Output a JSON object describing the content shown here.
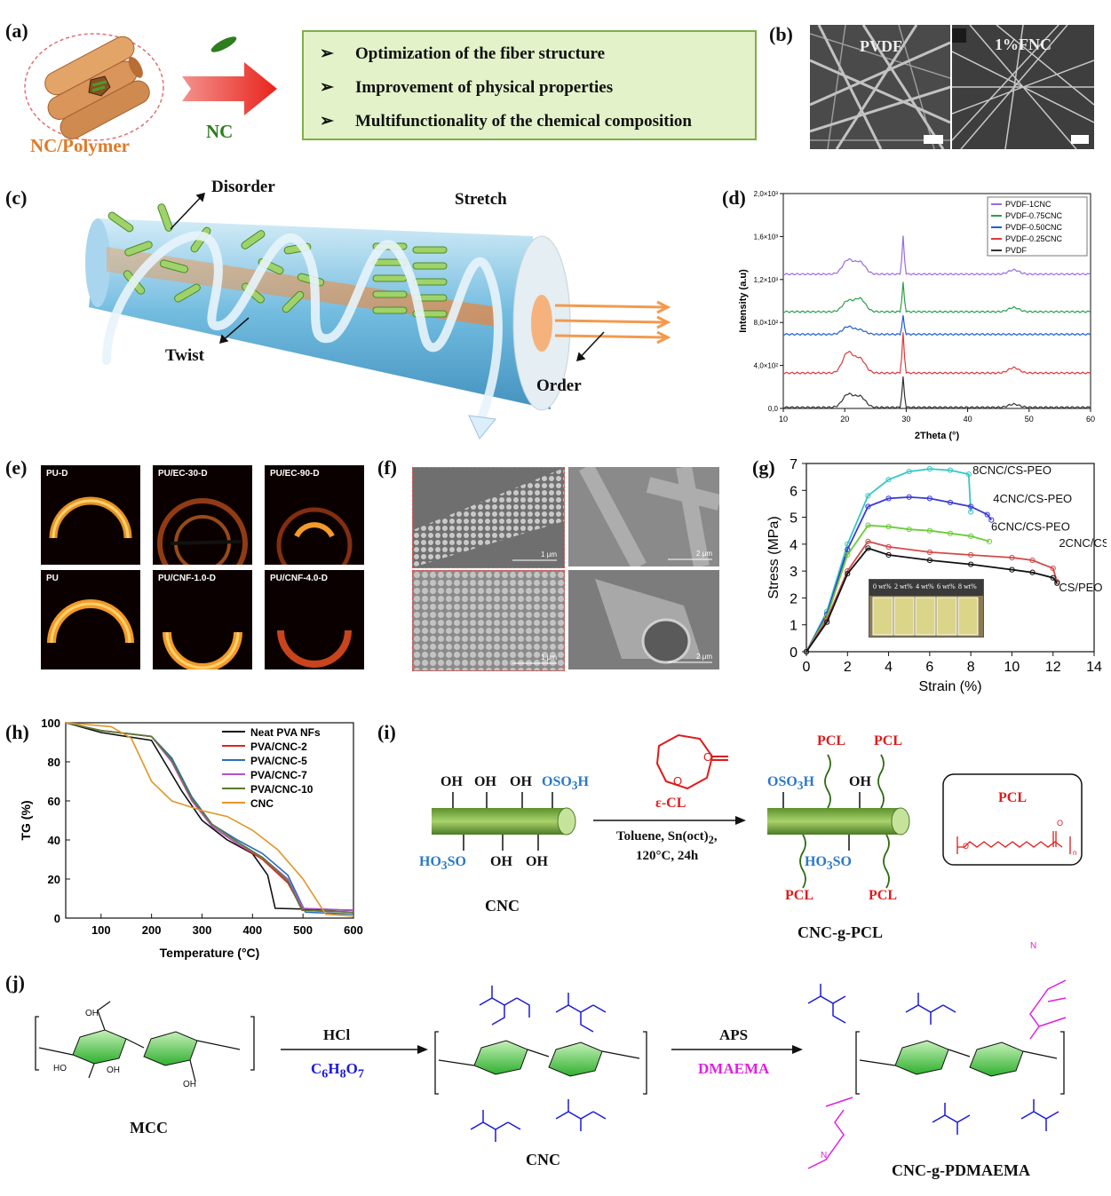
{
  "panels": [
    "(a)",
    "(b)",
    "(c)",
    "(d)",
    "(e)",
    "(f)",
    "(g)",
    "(h)",
    "(i)",
    "(j)"
  ],
  "panel_a": {
    "composite_label": "NC/Polymer",
    "nc_label": "NC",
    "benefits": [
      "Optimization of the fiber structure",
      "Improvement of physical properties",
      "Multifunctionality of the chemical composition"
    ],
    "colors": {
      "box_fill": "#e3f2c9",
      "box_border": "#7fae4a",
      "fiber": "#d9955a",
      "arrow": "#e8241c",
      "nc_text": "#2e7d1f",
      "composite_text": "#e07a28"
    }
  },
  "panel_b": {
    "left_label": "PVDF",
    "right_label": "1%FNC"
  },
  "panel_c": {
    "labels": {
      "disorder": "Disorder",
      "stretch": "Stretch",
      "twist": "Twist",
      "order": "Order"
    }
  },
  "panel_e": {
    "tiles": [
      "PU-D",
      "PU/EC-30-D",
      "PU/EC-90-D",
      "PU",
      "PU/CNF-1.0-D",
      "PU/CNF-4.0-D"
    ]
  },
  "panel_f": {
    "scale_bars": [
      "1 μm",
      "2 μm",
      "1 μm",
      "2 μm"
    ]
  },
  "panel_g": {
    "inset_labels": [
      "0 wt%",
      "2 wt%",
      "4 wt%",
      "6 wt%",
      "8 wt%"
    ]
  },
  "panel_i": {
    "reagent": "ε-CL",
    "conditions_line1": "Toluene, Sn(oct)",
    "conditions_sub": "2",
    "conditions_line1_end": ",",
    "conditions_line2": "120°C, 24h",
    "left_name": "CNC",
    "right_name": "CNC-g-PCL",
    "pcl_box_title": "PCL",
    "pcl_label": "PCL",
    "oh": "OH",
    "oso3h_top": "OSO",
    "oso3h_sub": "3",
    "oso3h_end": "H",
    "ho3so_a": "HO",
    "ho3so_sub": "3",
    "ho3so_b": "SO",
    "ring_o": "O",
    "carbonyl_o": "O",
    "chain_o": "O",
    "chain_n": "n"
  },
  "panel_j": {
    "step1_top": "HCl",
    "step1_bottom_a": "C",
    "step1_bottom_6": "6",
    "step1_bottom_h": "H",
    "step1_bottom_8": "8",
    "step1_bottom_o": "O",
    "step1_bottom_7": "7",
    "step2_top": "APS",
    "step2_bottom": "DMAEMA",
    "names": [
      "MCC",
      "CNC",
      "CNC-g-PDMAEMA"
    ],
    "oh": "OH",
    "ho": "HO",
    "o": "O",
    "n": "n",
    "n_amine": "N",
    "carbonyl": "O=",
    "ester": "O",
    "colors": {
      "citrate": "#1a1adb",
      "dmaema": "#e020e0",
      "ring": "#35c235"
    }
  },
  "chart_data": [
    {
      "panel": "(d)",
      "type": "line",
      "xlabel": "2Theta (°)",
      "ylabel": "Intensity (a.u)",
      "xlim": [
        10,
        60
      ],
      "xticks": [
        10,
        20,
        30,
        40,
        50,
        60
      ],
      "ylim": [
        0,
        2000
      ],
      "yticks": [
        "0,0",
        "4,0×10²",
        "8,0×10²",
        "1,2×10³",
        "1,6×10³",
        "2,0×10³"
      ],
      "ytick_values": [
        0,
        400,
        800,
        1200,
        1600,
        2000
      ],
      "legend_position": "top-right",
      "grid": false,
      "series": [
        {
          "name": "PVDF-1CNC",
          "color": "#9a6be0",
          "baseline": 1250,
          "peaks": [
            [
              20.5,
              1380
            ],
            [
              22.5,
              1360
            ],
            [
              29.5,
              1600
            ],
            [
              47.5,
              1290
            ]
          ]
        },
        {
          "name": "PVDF-0.75CNC",
          "color": "#2aa14a",
          "baseline": 900,
          "peaks": [
            [
              20.5,
              1000
            ],
            [
              22.5,
              1020
            ],
            [
              29.5,
              1170
            ],
            [
              47.5,
              940
            ]
          ]
        },
        {
          "name": "PVDF-0.50CNC",
          "color": "#1f5fd6",
          "baseline": 690,
          "peaks": [
            [
              20.5,
              760
            ],
            [
              22.5,
              730
            ],
            [
              29.5,
              860
            ]
          ]
        },
        {
          "name": "PVDF-0.25CNC",
          "color": "#e03a3a",
          "baseline": 330,
          "peaks": [
            [
              20.5,
              520
            ],
            [
              22.5,
              460
            ],
            [
              29.5,
              700
            ],
            [
              47.5,
              380
            ]
          ]
        },
        {
          "name": "PVDF",
          "color": "#333333",
          "baseline": 10,
          "peaks": [
            [
              20.5,
              130
            ],
            [
              22.5,
              110
            ],
            [
              29.5,
              290
            ],
            [
              47.5,
              40
            ]
          ]
        }
      ]
    },
    {
      "panel": "(g)",
      "type": "line",
      "xlabel": "Strain (%)",
      "ylabel": "Stress (MPa)",
      "xlim": [
        0,
        14
      ],
      "xticks": [
        0,
        2,
        4,
        6,
        8,
        10,
        12,
        14
      ],
      "ylim": [
        0,
        7
      ],
      "yticks": [
        0,
        1,
        2,
        3,
        4,
        5,
        6,
        7
      ],
      "grid": false,
      "series": [
        {
          "name": "8CNC/CS-PEO",
          "color": "#35c7c7",
          "points": [
            [
              0,
              0
            ],
            [
              1,
              1.5
            ],
            [
              2,
              4.0
            ],
            [
              3,
              5.8
            ],
            [
              4,
              6.4
            ],
            [
              5,
              6.7
            ],
            [
              6,
              6.8
            ],
            [
              7,
              6.75
            ],
            [
              7.9,
              6.6
            ],
            [
              8,
              5.2
            ]
          ]
        },
        {
          "name": "4CNC/CS-PEO",
          "color": "#3a3ad6",
          "points": [
            [
              0,
              0
            ],
            [
              1,
              1.4
            ],
            [
              2,
              3.8
            ],
            [
              3,
              5.4
            ],
            [
              4,
              5.7
            ],
            [
              5,
              5.75
            ],
            [
              6,
              5.7
            ],
            [
              7,
              5.55
            ],
            [
              8,
              5.4
            ],
            [
              8.8,
              5.1
            ],
            [
              9,
              4.9
            ]
          ]
        },
        {
          "name": "6CNC/CS-PEO",
          "color": "#6dcc3a",
          "points": [
            [
              0,
              0
            ],
            [
              1,
              1.3
            ],
            [
              2,
              3.6
            ],
            [
              3,
              4.7
            ],
            [
              4,
              4.65
            ],
            [
              5,
              4.55
            ],
            [
              6,
              4.5
            ],
            [
              7,
              4.4
            ],
            [
              8,
              4.3
            ],
            [
              8.9,
              4.1
            ]
          ]
        },
        {
          "name": "2CNC/CS-PEO",
          "color": "#d24a4a",
          "points": [
            [
              0,
              0
            ],
            [
              1,
              1.2
            ],
            [
              2,
              3.0
            ],
            [
              3,
              4.1
            ],
            [
              4,
              3.9
            ],
            [
              6,
              3.7
            ],
            [
              8,
              3.6
            ],
            [
              10,
              3.5
            ],
            [
              11,
              3.4
            ],
            [
              12,
              3.1
            ],
            [
              12.2,
              2.6
            ]
          ]
        },
        {
          "name": "CS/PEO",
          "color": "#111111",
          "points": [
            [
              0,
              0
            ],
            [
              1,
              1.1
            ],
            [
              2,
              2.9
            ],
            [
              3,
              3.85
            ],
            [
              4,
              3.6
            ],
            [
              6,
              3.4
            ],
            [
              8,
              3.25
            ],
            [
              10,
              3.05
            ],
            [
              11,
              2.95
            ],
            [
              12,
              2.75
            ],
            [
              12.2,
              2.55
            ]
          ]
        }
      ]
    },
    {
      "panel": "(h)",
      "type": "line",
      "xlabel": "Temperature (°C)",
      "ylabel": "TG (%)",
      "xlim": [
        30,
        600
      ],
      "xticks": [
        100,
        200,
        300,
        400,
        500,
        600
      ],
      "ylim": [
        0,
        100
      ],
      "yticks": [
        0,
        20,
        40,
        60,
        80,
        100
      ],
      "legend_position": "top-right",
      "grid": false,
      "series": [
        {
          "name": "Neat PVA NFs",
          "color": "#111111",
          "points": [
            [
              30,
              100
            ],
            [
              100,
              95
            ],
            [
              200,
              91
            ],
            [
              230,
              78
            ],
            [
              260,
              65
            ],
            [
              300,
              50
            ],
            [
              350,
              40
            ],
            [
              400,
              33
            ],
            [
              430,
              22
            ],
            [
              445,
              5
            ],
            [
              600,
              4
            ]
          ]
        },
        {
          "name": "PVA/CNC-2",
          "color": "#d62728",
          "points": [
            [
              30,
              100
            ],
            [
              100,
              96
            ],
            [
              200,
              93
            ],
            [
              240,
              80
            ],
            [
              280,
              60
            ],
            [
              320,
              47
            ],
            [
              370,
              38
            ],
            [
              420,
              30
            ],
            [
              470,
              18
            ],
            [
              500,
              4
            ],
            [
              600,
              3
            ]
          ]
        },
        {
          "name": "PVA/CNC-5",
          "color": "#2a6fb5",
          "points": [
            [
              30,
              100
            ],
            [
              100,
              96
            ],
            [
              200,
              93
            ],
            [
              240,
              82
            ],
            [
              280,
              62
            ],
            [
              320,
              48
            ],
            [
              370,
              40
            ],
            [
              420,
              33
            ],
            [
              470,
              22
            ],
            [
              505,
              3
            ],
            [
              600,
              2
            ]
          ]
        },
        {
          "name": "PVA/CNC-7",
          "color": "#b055c8",
          "points": [
            [
              30,
              100
            ],
            [
              100,
              96
            ],
            [
              200,
              93
            ],
            [
              240,
              80
            ],
            [
              280,
              60
            ],
            [
              320,
              47
            ],
            [
              370,
              38
            ],
            [
              420,
              31
            ],
            [
              470,
              20
            ],
            [
              500,
              5
            ],
            [
              600,
              4
            ]
          ]
        },
        {
          "name": "PVA/CNC-10",
          "color": "#5a7a2a",
          "points": [
            [
              30,
              100
            ],
            [
              100,
              96
            ],
            [
              200,
              93
            ],
            [
              240,
              81
            ],
            [
              280,
              61
            ],
            [
              320,
              48
            ],
            [
              370,
              39
            ],
            [
              420,
              31
            ],
            [
              470,
              19
            ],
            [
              498,
              4
            ],
            [
              600,
              3
            ]
          ]
        },
        {
          "name": "CNC",
          "color": "#e0962a",
          "points": [
            [
              30,
              100
            ],
            [
              120,
              98
            ],
            [
              160,
              92
            ],
            [
              200,
              70
            ],
            [
              240,
              60
            ],
            [
              300,
              55
            ],
            [
              350,
              52
            ],
            [
              400,
              45
            ],
            [
              450,
              35
            ],
            [
              500,
              20
            ],
            [
              530,
              8
            ],
            [
              545,
              2
            ],
            [
              600,
              1
            ]
          ]
        }
      ]
    }
  ]
}
